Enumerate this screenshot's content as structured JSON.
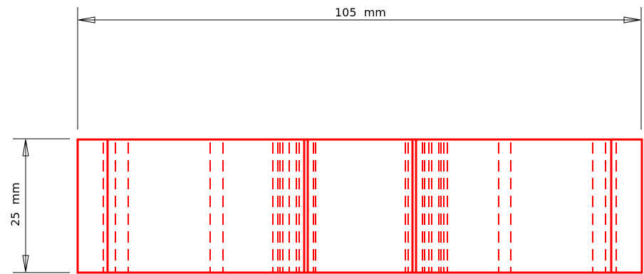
{
  "dimensions": {
    "width_label": "105  mm",
    "height_label": "25  mm"
  },
  "colors": {
    "outline": "#ff0000",
    "dimension": "#000000",
    "background": "#ffffff"
  }
}
